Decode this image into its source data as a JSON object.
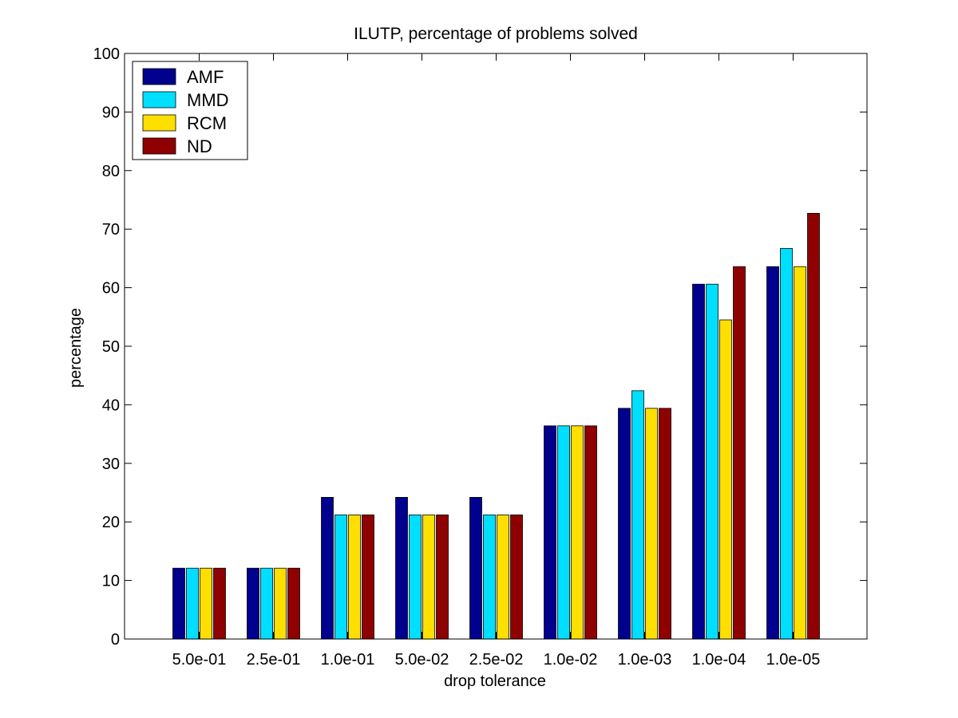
{
  "chart_data": {
    "type": "bar",
    "title": "ILUTP, percentage of problems solved",
    "xlabel": "drop tolerance",
    "ylabel": "percentage",
    "ylim": [
      0,
      100
    ],
    "yticks": [
      "0",
      "10",
      "20",
      "30",
      "40",
      "50",
      "60",
      "70",
      "80",
      "90",
      "100"
    ],
    "grid": false,
    "legend_position": "top-left",
    "categories": [
      "5.0e-01",
      "2.5e-01",
      "1.0e-01",
      "5.0e-02",
      "2.5e-02",
      "1.0e-02",
      "1.0e-03",
      "1.0e-04",
      "1.0e-05"
    ],
    "series": [
      {
        "name": "AMF",
        "color": "#00008f",
        "values": [
          12.1,
          12.1,
          24.2,
          24.2,
          24.2,
          36.4,
          39.4,
          60.6,
          63.6
        ]
      },
      {
        "name": "MMD",
        "color": "#00dfff",
        "values": [
          12.1,
          12.1,
          21.2,
          21.2,
          21.2,
          36.4,
          42.4,
          60.6,
          66.7
        ]
      },
      {
        "name": "RCM",
        "color": "#ffdf00",
        "values": [
          12.1,
          12.1,
          21.2,
          21.2,
          21.2,
          36.4,
          39.4,
          54.5,
          63.6
        ]
      },
      {
        "name": "ND",
        "color": "#8f0000",
        "values": [
          12.1,
          12.1,
          21.2,
          21.2,
          21.2,
          36.4,
          39.4,
          63.6,
          72.7
        ]
      }
    ]
  }
}
